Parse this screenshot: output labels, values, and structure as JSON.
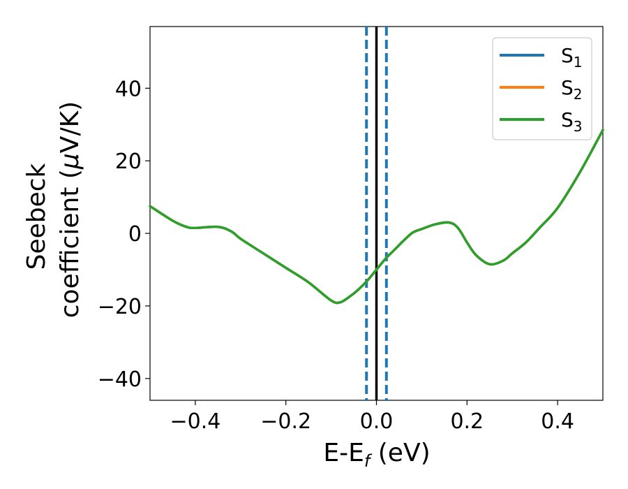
{
  "chart_data": {
    "type": "line",
    "xlabel": {
      "main": "E-E",
      "sub": "f",
      "tail": " (eV)"
    },
    "ylabel": {
      "line1": "Seebeck",
      "line2": "coefficient  (",
      "mu": "μ",
      "unit": "V/K)"
    },
    "xlim": [
      -0.5,
      0.5
    ],
    "ylim": [
      -46,
      57
    ],
    "xticks": [
      -0.4,
      -0.2,
      0.0,
      0.2,
      0.4
    ],
    "xtick_labels": [
      "−0.4",
      "−0.2",
      "0.0",
      "0.2",
      "0.4"
    ],
    "yticks": [
      -40,
      -20,
      0,
      20,
      40
    ],
    "ytick_labels": [
      "−40",
      "−20",
      "0",
      "20",
      "40"
    ],
    "grid": false,
    "legend_position": "top-right",
    "series": [
      {
        "name": "S",
        "sub": "1",
        "color": "#1f77b4"
      },
      {
        "name": "S",
        "sub": "2",
        "color": "#ff7f0e"
      },
      {
        "name": "S",
        "sub": "3",
        "color": "#2ca02c"
      }
    ],
    "x": [
      -0.5,
      -0.45,
      -0.42,
      -0.4,
      -0.35,
      -0.32,
      -0.3,
      -0.25,
      -0.2,
      -0.15,
      -0.1,
      -0.08,
      -0.06,
      -0.04,
      -0.02,
      0.0,
      0.02,
      0.04,
      0.06,
      0.08,
      0.1,
      0.13,
      0.16,
      0.18,
      0.2,
      0.22,
      0.25,
      0.28,
      0.3,
      0.33,
      0.36,
      0.4,
      0.45,
      0.5
    ],
    "y": [
      7.5,
      3.5,
      1.8,
      1.5,
      1.8,
      0.5,
      -1.5,
      -5.5,
      -9.5,
      -13.5,
      -18.5,
      -19.0,
      -17.5,
      -15.5,
      -13.0,
      -10.0,
      -7.0,
      -4.5,
      -2.0,
      0.2,
      1.2,
      2.5,
      3.0,
      1.5,
      -2.5,
      -6.0,
      -8.5,
      -7.5,
      -5.5,
      -2.5,
      1.5,
      7.0,
      17.0,
      28.5
    ],
    "vlines": [
      {
        "x": -0.022,
        "style": "dashed",
        "color": "#1f77b4"
      },
      {
        "x": 0.0,
        "style": "solid",
        "color": "#000000"
      },
      {
        "x": 0.022,
        "style": "dashed",
        "color": "#1f77b4"
      }
    ]
  }
}
